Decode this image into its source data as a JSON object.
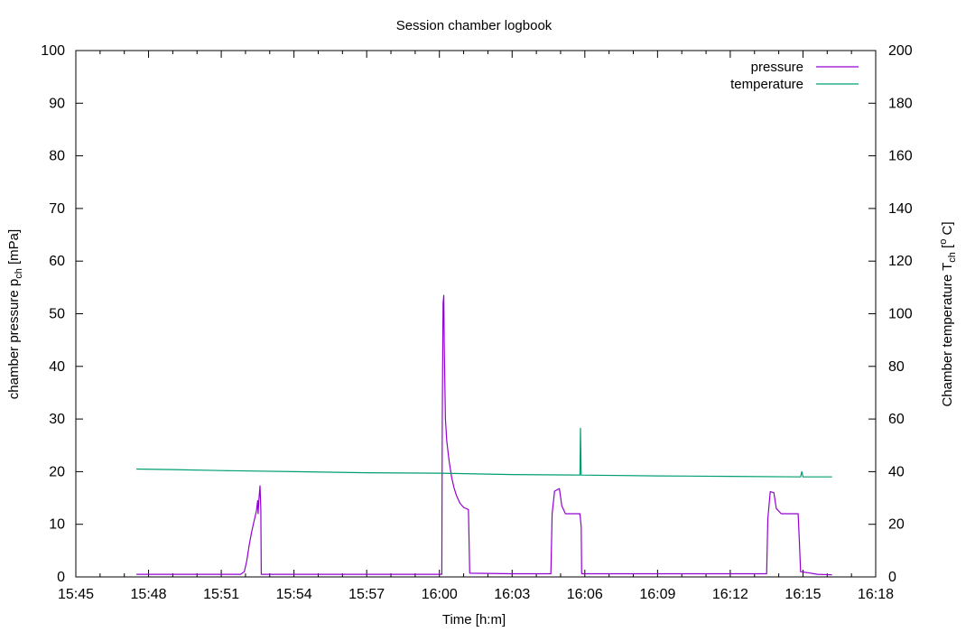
{
  "chart_data": {
    "type": "line",
    "title": "Session chamber logbook",
    "xlabel": "Time [h:m]",
    "ylabel": {
      "main": "chamber pressure p",
      "sub": "ch",
      "unit": " [mPa]"
    },
    "y2label": {
      "main": "Chamber temperature T",
      "sub": "ch",
      "mid": " [",
      "sup": "o",
      "unit": " C]"
    },
    "xlim": [
      945,
      978
    ],
    "ylim": [
      0,
      100
    ],
    "y2lim": [
      0,
      200
    ],
    "x_ticks": [
      {
        "v": 945,
        "label": "15:45"
      },
      {
        "v": 948,
        "label": "15:48"
      },
      {
        "v": 951,
        "label": "15:51"
      },
      {
        "v": 954,
        "label": "15:54"
      },
      {
        "v": 957,
        "label": "15:57"
      },
      {
        "v": 960,
        "label": "16:00"
      },
      {
        "v": 963,
        "label": "16:03"
      },
      {
        "v": 966,
        "label": "16:06"
      },
      {
        "v": 969,
        "label": "16:09"
      },
      {
        "v": 972,
        "label": "16:12"
      },
      {
        "v": 975,
        "label": "16:15"
      },
      {
        "v": 978,
        "label": "16:18"
      }
    ],
    "y_ticks": [
      {
        "v": 0,
        "label": "0"
      },
      {
        "v": 10,
        "label": "10"
      },
      {
        "v": 20,
        "label": "20"
      },
      {
        "v": 30,
        "label": "30"
      },
      {
        "v": 40,
        "label": "40"
      },
      {
        "v": 50,
        "label": "50"
      },
      {
        "v": 60,
        "label": "60"
      },
      {
        "v": 70,
        "label": "70"
      },
      {
        "v": 80,
        "label": "80"
      },
      {
        "v": 90,
        "label": "90"
      },
      {
        "v": 100,
        "label": "100"
      }
    ],
    "y2_ticks": [
      {
        "v": 0,
        "label": "0"
      },
      {
        "v": 20,
        "label": "20"
      },
      {
        "v": 40,
        "label": "40"
      },
      {
        "v": 60,
        "label": "60"
      },
      {
        "v": 80,
        "label": "80"
      },
      {
        "v": 100,
        "label": "100"
      },
      {
        "v": 120,
        "label": "120"
      },
      {
        "v": 140,
        "label": "140"
      },
      {
        "v": 160,
        "label": "160"
      },
      {
        "v": 180,
        "label": "180"
      },
      {
        "v": 200,
        "label": "200"
      }
    ],
    "grid": false,
    "legend": "top-right",
    "series": [
      {
        "name": "pressure",
        "axis": "y",
        "color": "#9400d3",
        "points": [
          [
            947.5,
            0.5
          ],
          [
            951.8,
            0.5
          ],
          [
            951.95,
            1.0
          ],
          [
            952.05,
            3.0
          ],
          [
            952.15,
            6.0
          ],
          [
            952.25,
            8.5
          ],
          [
            952.35,
            10.5
          ],
          [
            952.45,
            12.5
          ],
          [
            952.5,
            14.5
          ],
          [
            952.52,
            12.0
          ],
          [
            952.55,
            14.5
          ],
          [
            952.6,
            17.3
          ],
          [
            952.63,
            13.0
          ],
          [
            952.65,
            0.5
          ],
          [
            960.1,
            0.5
          ],
          [
            960.12,
            30.0
          ],
          [
            960.15,
            52.0
          ],
          [
            960.18,
            53.5
          ],
          [
            960.2,
            44.0
          ],
          [
            960.25,
            30.0
          ],
          [
            960.3,
            26.0
          ],
          [
            960.35,
            24.0
          ],
          [
            960.4,
            22.0
          ],
          [
            960.5,
            19.0
          ],
          [
            960.6,
            17.0
          ],
          [
            960.7,
            15.5
          ],
          [
            960.85,
            14.0
          ],
          [
            961.0,
            13.2
          ],
          [
            961.2,
            12.8
          ],
          [
            961.25,
            0.7
          ],
          [
            963.0,
            0.6
          ],
          [
            964.6,
            0.6
          ],
          [
            964.65,
            12.0
          ],
          [
            964.75,
            16.3
          ],
          [
            964.95,
            16.8
          ],
          [
            965.05,
            13.5
          ],
          [
            965.2,
            12.0
          ],
          [
            965.8,
            12.0
          ],
          [
            965.85,
            9.5
          ],
          [
            965.87,
            0.6
          ],
          [
            973.5,
            0.6
          ],
          [
            973.55,
            11.0
          ],
          [
            973.65,
            16.2
          ],
          [
            973.8,
            16.0
          ],
          [
            973.9,
            13.0
          ],
          [
            974.1,
            12.0
          ],
          [
            974.8,
            12.0
          ],
          [
            974.85,
            7.0
          ],
          [
            974.9,
            1.0
          ],
          [
            975.2,
            0.8
          ],
          [
            975.6,
            0.5
          ],
          [
            976.2,
            0.4
          ]
        ]
      },
      {
        "name": "temperature",
        "axis": "y2",
        "color": "#009e73",
        "points": [
          [
            947.5,
            41.0
          ],
          [
            949.0,
            40.8
          ],
          [
            951.0,
            40.4
          ],
          [
            954.0,
            40.0
          ],
          [
            957.0,
            39.6
          ],
          [
            960.0,
            39.4
          ],
          [
            963.0,
            38.9
          ],
          [
            965.8,
            38.7
          ],
          [
            965.82,
            56.5
          ],
          [
            965.85,
            38.7
          ],
          [
            969.0,
            38.4
          ],
          [
            972.0,
            38.2
          ],
          [
            974.9,
            38.0
          ],
          [
            974.95,
            40.0
          ],
          [
            975.0,
            38.0
          ],
          [
            976.2,
            38.0
          ]
        ]
      }
    ]
  }
}
